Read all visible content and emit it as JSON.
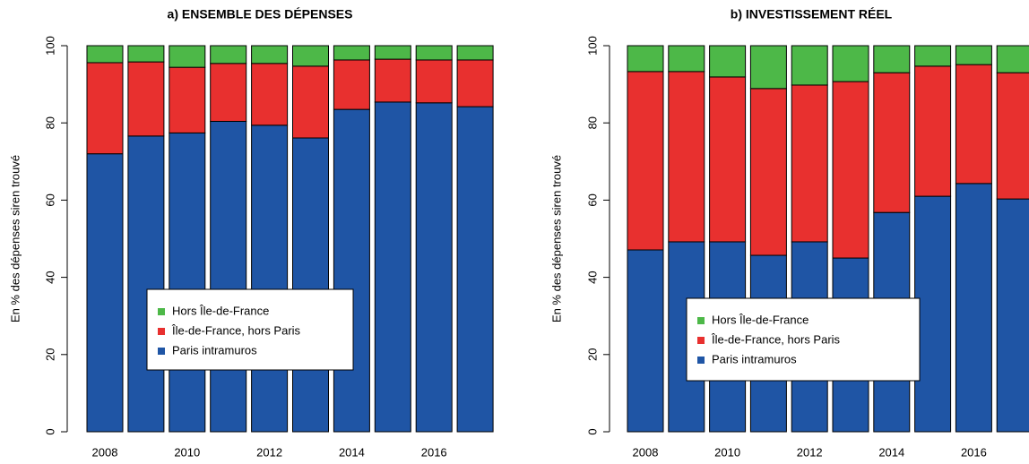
{
  "chart_data": [
    {
      "type": "bar",
      "stacked": true,
      "title": "a) ENSEMBLE DES DÉPENSES",
      "ylabel": "En % des dépenses siren trouvé",
      "categories": [
        "2008",
        null,
        "2010",
        null,
        "2012",
        null,
        "2014",
        null,
        "2016",
        null
      ],
      "series": [
        {
          "name": "Hors Île-de-France",
          "color": "#4db848",
          "values": [
            4.4,
            4.2,
            5.6,
            4.6,
            4.6,
            5.3,
            3.7,
            3.5,
            3.7,
            3.7
          ]
        },
        {
          "name": "Île-de-France, hors Paris",
          "color": "#e8302f",
          "values": [
            23.6,
            19.2,
            17,
            15,
            16,
            18.6,
            12.8,
            11.1,
            11.1,
            12.1
          ]
        },
        {
          "name": "Paris intramuros",
          "color": "#1f55a5",
          "values": [
            72,
            76.6,
            77.4,
            80.4,
            79.4,
            76.1,
            83.5,
            85.4,
            85.2,
            84.2
          ]
        }
      ],
      "ylim": [
        0,
        100
      ],
      "yticks": [
        0,
        20,
        40,
        60,
        80,
        100
      ]
    },
    {
      "type": "bar",
      "stacked": true,
      "title": "b) INVESTISSEMENT RÉEL",
      "ylabel": "En % des dépenses siren trouvé",
      "categories": [
        "2008",
        null,
        "2010",
        null,
        "2012",
        null,
        "2014",
        null,
        "2016",
        null
      ],
      "series": [
        {
          "name": "Hors Île-de-France",
          "color": "#4db848",
          "values": [
            6.7,
            6.7,
            8.1,
            11.1,
            10.2,
            9.3,
            7.0,
            5.3,
            4.9,
            7.0
          ]
        },
        {
          "name": "Île-de-France, hors Paris",
          "color": "#e8302f",
          "values": [
            46.2,
            44.1,
            42.7,
            43.2,
            40.6,
            45.7,
            36.2,
            33.7,
            30.8,
            32.7
          ]
        },
        {
          "name": "Paris intramuros",
          "color": "#1f55a5",
          "values": [
            47.1,
            49.2,
            49.2,
            45.7,
            49.2,
            45.0,
            56.8,
            61.0,
            64.3,
            60.3
          ]
        }
      ],
      "ylim": [
        0,
        100
      ],
      "yticks": [
        0,
        20,
        40,
        60,
        80,
        100
      ]
    }
  ]
}
